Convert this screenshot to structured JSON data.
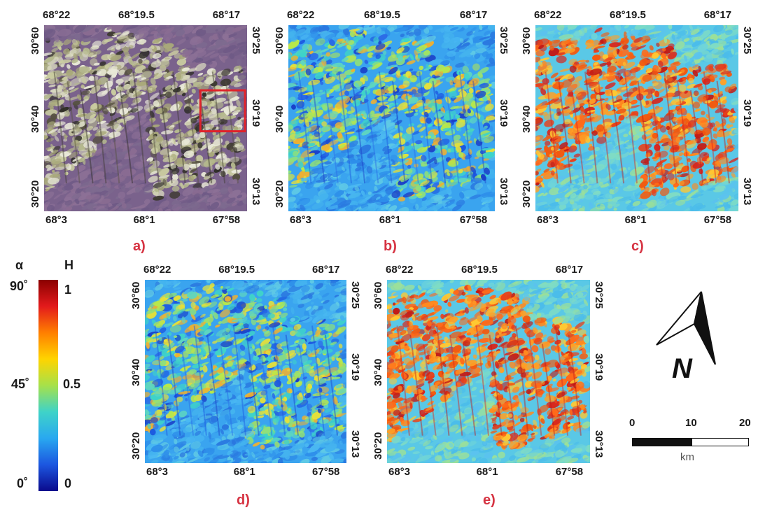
{
  "panels": [
    {
      "id": "a",
      "label": "a)",
      "top_ticks": [
        "68°22",
        "68°19.5",
        "68°17"
      ],
      "bottom_ticks": [
        "68°3",
        "68°1",
        "67°58"
      ],
      "left_ticks": [
        "30°60",
        "30°40",
        "30°20"
      ],
      "right_ticks": [
        "30°25",
        "30°19",
        "30°13"
      ],
      "style": "rgb",
      "has_inset_box": true
    },
    {
      "id": "b",
      "label": "b)",
      "top_ticks": [
        "68°22",
        "68°19.5",
        "68°17"
      ],
      "bottom_ticks": [
        "68°3",
        "68°1",
        "67°58"
      ],
      "left_ticks": [
        "30°60",
        "30°40",
        "30°20"
      ],
      "right_ticks": [
        "30°25",
        "30°19",
        "30°13"
      ],
      "style": "blue"
    },
    {
      "id": "c",
      "label": "c)",
      "top_ticks": [
        "68°22",
        "68°19.5",
        "68°17"
      ],
      "bottom_ticks": [
        "68°3",
        "68°1",
        "67°58"
      ],
      "left_ticks": [
        "30°60",
        "30°40",
        "30°20"
      ],
      "right_ticks": [
        "30°25",
        "30°19",
        "30°13"
      ],
      "style": "hot"
    },
    {
      "id": "d",
      "label": "d)",
      "top_ticks": [
        "68°22",
        "68°19.5",
        "68°17"
      ],
      "bottom_ticks": [
        "68°3",
        "68°1",
        "67°58"
      ],
      "left_ticks": [
        "30°60",
        "30°40",
        "30°20"
      ],
      "right_ticks": [
        "30°25",
        "30°19",
        "30°13"
      ],
      "style": "blue"
    },
    {
      "id": "e",
      "label": "e)",
      "top_ticks": [
        "68°22",
        "68°19.5",
        "68°17"
      ],
      "bottom_ticks": [
        "68°3",
        "68°1",
        "67°58"
      ],
      "left_ticks": [
        "30°60",
        "30°40",
        "30°20"
      ],
      "right_ticks": [
        "30°25",
        "30°19",
        "30°13"
      ],
      "style": "hot"
    }
  ],
  "colorbar": {
    "left_title": "α",
    "right_title": "H",
    "left_ticks": [
      "90˚",
      "45˚",
      "0˚"
    ],
    "right_ticks": [
      "1",
      "0.5",
      "0"
    ],
    "colors": [
      "#8b0000",
      "#e31a1c",
      "#ff7f00",
      "#ffd400",
      "#a6e14a",
      "#3fd3c8",
      "#29a8f0",
      "#1c56e0",
      "#0a0a8c"
    ]
  },
  "north_arrow": {
    "label": "N",
    "icon": "north-arrow-icon"
  },
  "scale_bar": {
    "ticks": [
      "0",
      "10",
      "20"
    ],
    "unit": "km"
  }
}
